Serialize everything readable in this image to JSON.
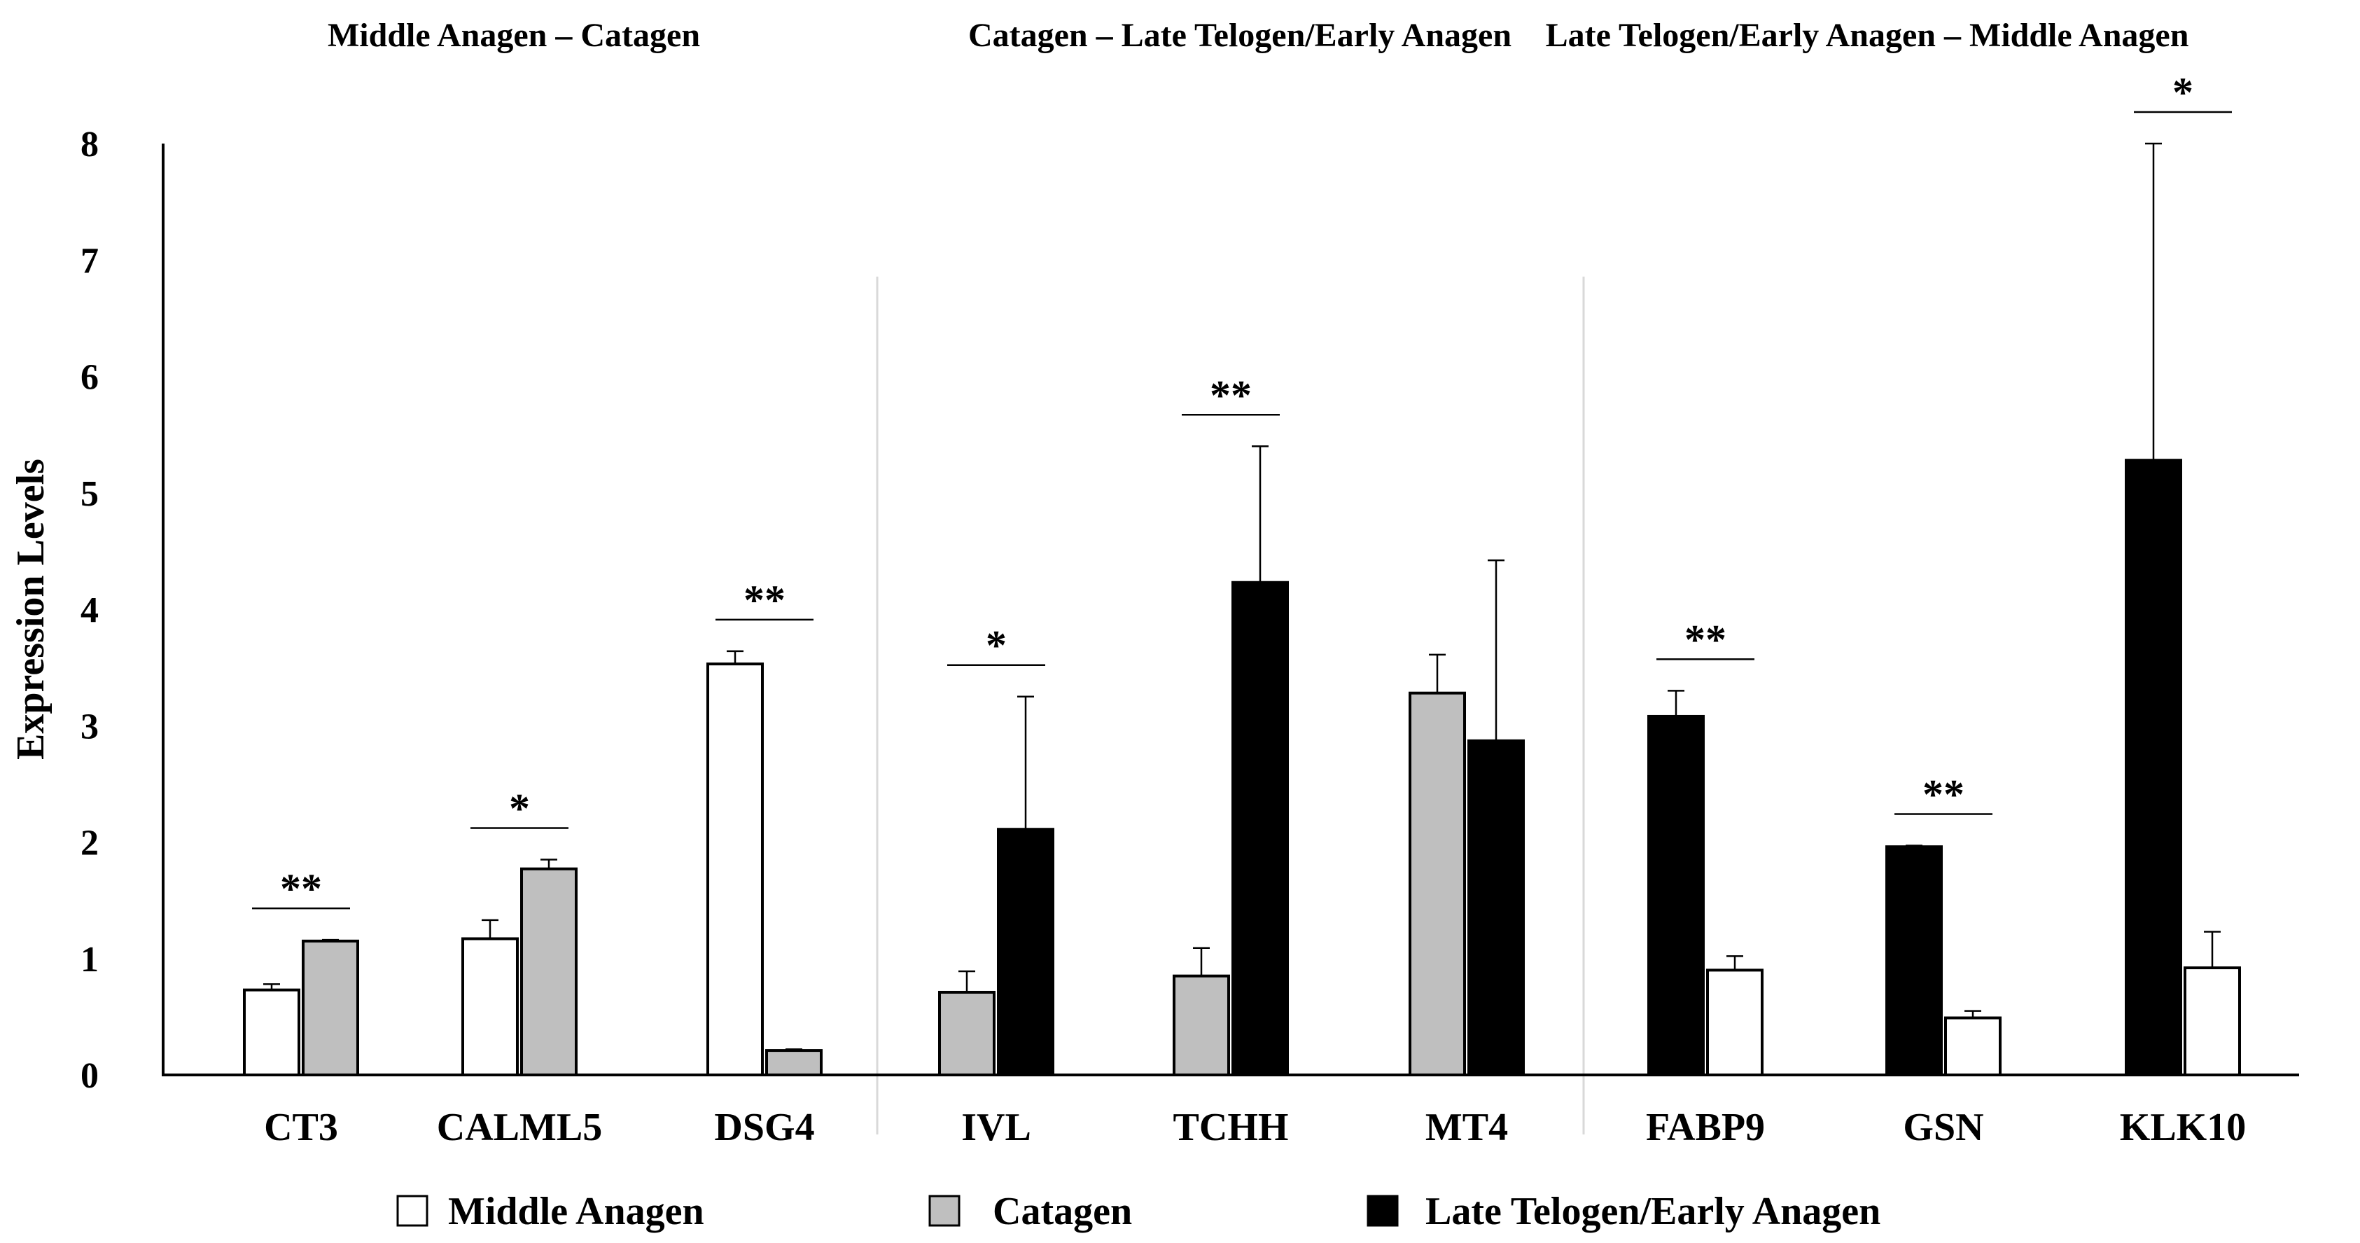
{
  "colors": {
    "middle_anagen": "#ffffff",
    "catagen": "#bfbfbf",
    "late_telogen": "#000000",
    "divider": "#d9d9d9",
    "axis": "#000000"
  },
  "chart_data": {
    "type": "bar",
    "ylabel": "Expression Levels",
    "xlabel": "",
    "ylim": [
      0,
      8
    ],
    "yticks": [
      0,
      1,
      2,
      3,
      4,
      5,
      6,
      7,
      8
    ],
    "group_titles": [
      "Middle Anagen – Catagen",
      "Catagen – Late Telogen/Early Anagen",
      "Late Telogen/Early Anagen – Middle Anagen"
    ],
    "legend": [
      {
        "key": "middle_anagen",
        "label": "Middle Anagen"
      },
      {
        "key": "catagen",
        "label": "Catagen"
      },
      {
        "key": "late_telogen",
        "label": "Late Telogen/Early Anagen"
      }
    ],
    "categories": [
      {
        "label": "CT3",
        "significance": "**",
        "bars": [
          {
            "series": "middle_anagen",
            "value": 0.73,
            "error": 0.05
          },
          {
            "series": "catagen",
            "value": 1.15,
            "error": 0.01
          }
        ]
      },
      {
        "label": "CALML5",
        "significance": "*",
        "bars": [
          {
            "series": "middle_anagen",
            "value": 1.17,
            "error": 0.16
          },
          {
            "series": "catagen",
            "value": 1.77,
            "error": 0.08
          }
        ]
      },
      {
        "label": "DSG4",
        "significance": "**",
        "bars": [
          {
            "series": "middle_anagen",
            "value": 3.53,
            "error": 0.11
          },
          {
            "series": "catagen",
            "value": 0.21,
            "error": 0.01
          }
        ]
      },
      {
        "label": "IVL",
        "significance": "*",
        "bars": [
          {
            "series": "catagen",
            "value": 0.71,
            "error": 0.18
          },
          {
            "series": "late_telogen",
            "value": 2.11,
            "error": 1.14
          }
        ]
      },
      {
        "label": "TCHH",
        "significance": "**",
        "bars": [
          {
            "series": "catagen",
            "value": 0.85,
            "error": 0.24
          },
          {
            "series": "late_telogen",
            "value": 4.23,
            "error": 1.17
          }
        ]
      },
      {
        "label": "MT4",
        "significance": "",
        "bars": [
          {
            "series": "catagen",
            "value": 3.28,
            "error": 0.33
          },
          {
            "series": "late_telogen",
            "value": 2.87,
            "error": 1.55
          }
        ]
      },
      {
        "label": "FABP9",
        "significance": "**",
        "bars": [
          {
            "series": "late_telogen",
            "value": 3.08,
            "error": 0.22
          },
          {
            "series": "middle_anagen",
            "value": 0.9,
            "error": 0.12
          }
        ]
      },
      {
        "label": "GSN",
        "significance": "**",
        "bars": [
          {
            "series": "late_telogen",
            "value": 1.96,
            "error": 0.01
          },
          {
            "series": "middle_anagen",
            "value": 0.49,
            "error": 0.06
          }
        ]
      },
      {
        "label": "KLK10",
        "significance": "*",
        "bars": [
          {
            "series": "late_telogen",
            "value": 5.28,
            "error": 2.72
          },
          {
            "series": "middle_anagen",
            "value": 0.92,
            "error": 0.31
          }
        ]
      }
    ]
  }
}
